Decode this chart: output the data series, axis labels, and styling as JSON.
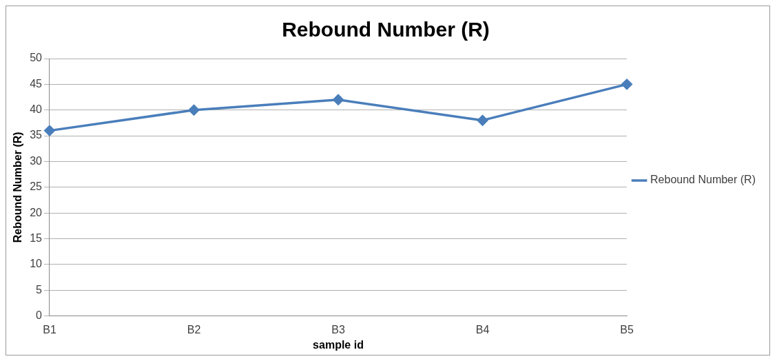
{
  "chart_data": {
    "type": "line",
    "title": "Rebound Number (R)",
    "xlabel": "sample id",
    "ylabel": "Rebound Number (R)",
    "categories": [
      "B1",
      "B2",
      "B3",
      "B4",
      "B5"
    ],
    "series": [
      {
        "name": "Rebound Number (R)",
        "color": "#4a7ebb",
        "values": [
          36,
          40,
          42,
          38,
          45
        ]
      }
    ],
    "ylim": [
      0,
      50
    ],
    "yticks": [
      0,
      5,
      10,
      15,
      20,
      25,
      30,
      35,
      40,
      45,
      50
    ],
    "grid": "y",
    "legend": "right",
    "marker": "diamond",
    "line_style": "solid"
  }
}
